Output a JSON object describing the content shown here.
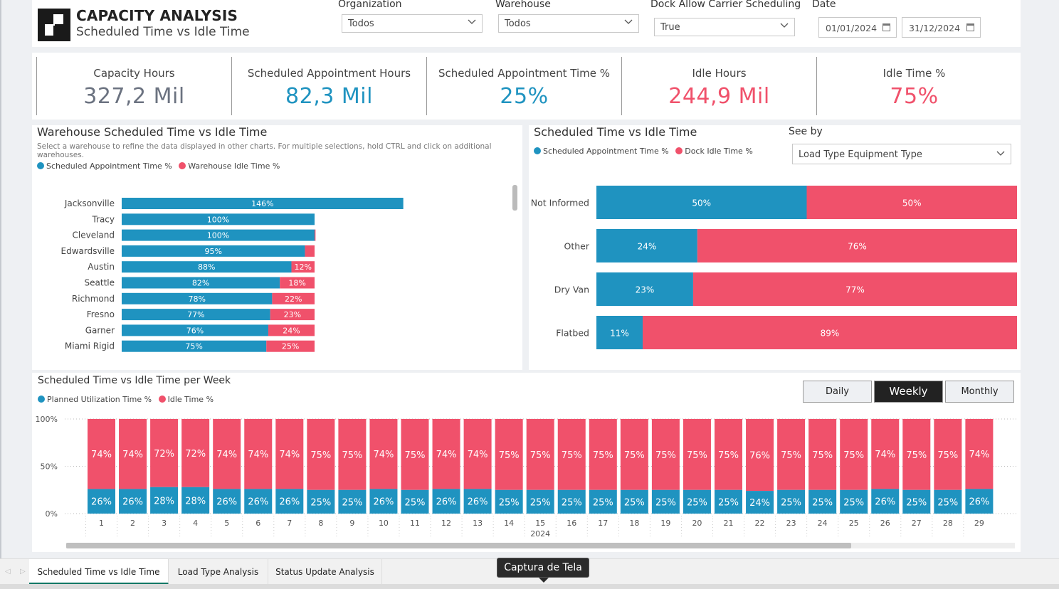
{
  "colors": {
    "blue": "#1f93c0",
    "red": "#f0516b",
    "grey_value": "#6b7280"
  },
  "header": {
    "title": "CAPACITY ANALYSIS",
    "subtitle": "Scheduled Time vs Idle Time",
    "filters": {
      "organization": {
        "label": "Organization",
        "value": "Todos"
      },
      "warehouse": {
        "label": "Warehouse",
        "value": "Todos"
      },
      "dock": {
        "label": "Dock Allow Carrier Scheduling",
        "value": "True"
      },
      "date": {
        "label": "Date",
        "start": "01/01/2024",
        "end": "31/12/2024"
      }
    }
  },
  "kpis": [
    {
      "label": "Capacity Hours",
      "value": "327,2 Mil",
      "color": "#6b7280"
    },
    {
      "label": "Scheduled Appointment Hours",
      "value": "82,3 Mil",
      "color": "#1f93c0"
    },
    {
      "label": "Scheduled Appointment Time %",
      "value": "25%",
      "color": "#1f93c0"
    },
    {
      "label": "Idle Hours",
      "value": "244,9 Mil",
      "color": "#f0516b"
    },
    {
      "label": "Idle Time %",
      "value": "75%",
      "color": "#f0516b"
    }
  ],
  "warehouse_chart": {
    "title": "Warehouse Scheduled Time vs Idle Time",
    "description": "Select a warehouse to refine the data displayed in other charts. For multiple selections, hold CTRL and click on additional warehouses.",
    "legend": [
      "Scheduled Appointment Time %",
      "Warehouse Idle Time %"
    ]
  },
  "loadtype_chart": {
    "title": "Scheduled Time vs Idle Time",
    "see_by_label": "See by",
    "see_by_value": "Load Type Equipment Type",
    "legend": [
      "Scheduled Appointment Time %",
      "Dock Idle Time %"
    ]
  },
  "weekly_chart": {
    "title": "Scheduled Time vs Idle Time per Week",
    "legend": [
      "Planned Utilization Time %",
      "Idle Time %"
    ],
    "toggles": [
      "Daily",
      "Weekly",
      "Monthly"
    ],
    "active_toggle": "Weekly",
    "year_label": "2024"
  },
  "tabs": [
    "Scheduled Time vs Idle Time",
    "Load Type Analysis",
    "Status Update Analysis"
  ],
  "tooltip": "Captura de Tela",
  "chart_data": [
    {
      "type": "bar",
      "orientation": "horizontal",
      "categories": [
        "Jacksonville",
        "Tracy",
        "Cleveland",
        "Edwardsville",
        "Austin",
        "Seattle",
        "Richmond",
        "Fresno",
        "Garner",
        "Miami Rigid"
      ],
      "series": [
        {
          "name": "Scheduled Appointment Time %",
          "values": [
            146,
            100,
            100,
            95,
            88,
            82,
            78,
            77,
            76,
            75
          ],
          "labels": [
            "146%",
            "100%",
            "100%",
            "95%",
            "88%",
            "82%",
            "78%",
            "77%",
            "76%",
            "75%"
          ]
        },
        {
          "name": "Warehouse Idle Time %",
          "values": [
            0,
            0,
            0.5,
            5,
            12,
            18,
            22,
            23,
            24,
            25
          ],
          "labels": [
            "",
            "",
            "",
            "",
            "12%",
            "18%",
            "22%",
            "23%",
            "24%",
            "25%"
          ]
        }
      ]
    },
    {
      "type": "bar",
      "orientation": "horizontal",
      "stacked": "100%",
      "categories": [
        "Not Informed",
        "Other",
        "Dry Van",
        "Flatbed"
      ],
      "series": [
        {
          "name": "Scheduled Appointment Time %",
          "values": [
            50,
            24,
            23,
            11
          ]
        },
        {
          "name": "Dock Idle Time %",
          "values": [
            50,
            76,
            77,
            89
          ]
        }
      ]
    },
    {
      "type": "bar",
      "stacked": "100%",
      "categories": [
        "1",
        "2",
        "3",
        "4",
        "5",
        "6",
        "7",
        "8",
        "9",
        "10",
        "11",
        "12",
        "13",
        "14",
        "15",
        "16",
        "17",
        "18",
        "19",
        "20",
        "21",
        "22",
        "23",
        "24",
        "25",
        "26",
        "27",
        "28",
        "29"
      ],
      "yticks": [
        "0%",
        "50%",
        "100%"
      ],
      "series": [
        {
          "name": "Planned Utilization Time %",
          "values": [
            26,
            26,
            28,
            28,
            26,
            26,
            26,
            25,
            25,
            26,
            25,
            26,
            26,
            25,
            25,
            25,
            25,
            25,
            25,
            25,
            25,
            24,
            25,
            25,
            25,
            26,
            25,
            25,
            26
          ]
        },
        {
          "name": "Idle Time %",
          "values": [
            74,
            74,
            72,
            72,
            74,
            74,
            74,
            75,
            75,
            74,
            75,
            74,
            74,
            75,
            75,
            75,
            75,
            75,
            75,
            75,
            75,
            76,
            75,
            75,
            75,
            74,
            75,
            75,
            74
          ]
        }
      ]
    }
  ]
}
